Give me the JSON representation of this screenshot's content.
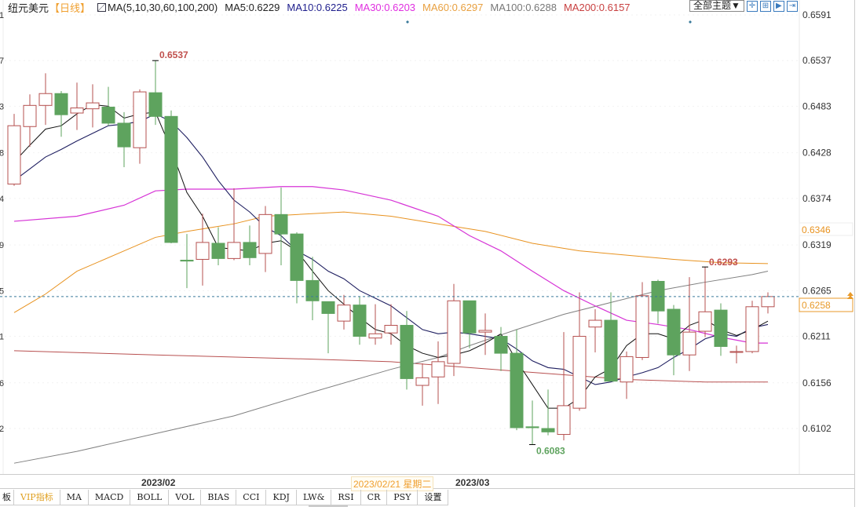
{
  "header": {
    "symbol": "纽元美元",
    "period": "【日线】",
    "ma_params": "MA(5,10,30,60,100,200)",
    "ma5": "MA5:0.6229",
    "ma10": "MA10:0.6225",
    "ma30": "MA30:0.6203",
    "ma60": "MA60:0.6297",
    "ma100": "MA100:0.6288",
    "ma200": "MA200:0.6157"
  },
  "toolbar": {
    "theme": "全部主题▼",
    "icons": [
      "crosshair-icon",
      "candle-icon",
      "step-icon",
      "export-icon"
    ]
  },
  "tabs": [
    "板",
    "VIP指标",
    "MA",
    "MACD",
    "BOLL",
    "VOL",
    "BIAS",
    "CCI",
    "KDJ",
    "LW&",
    "RSI",
    "CR",
    "PSY",
    "设置"
  ],
  "xaxis": {
    "month1": "2023/02",
    "month2": "2023/03",
    "crosshair_date": "2023/02/21 星期二"
  },
  "colors": {
    "up": "#b5504f",
    "down": "#5ea35e",
    "ma5": "#111111",
    "ma10": "#1e1e60",
    "ma30": "#d633d6",
    "ma60": "#e8921f",
    "ma100": "#808080",
    "ma200": "#b85050",
    "last": "#e89a2a"
  },
  "chart_data": {
    "type": "candlestick",
    "title": "纽元美元 日线",
    "ylim": [
      0.6058,
      0.6591
    ],
    "yticks": [
      "0.6591",
      "0.6537",
      "0.6483",
      "0.6428",
      "0.6374",
      "0.6319",
      "0.6265",
      "0.6211",
      "0.6156",
      "0.6102"
    ],
    "left_ticks": [
      "1",
      "7",
      "3",
      "8",
      "4",
      "9",
      "5",
      "1",
      "6",
      "2"
    ],
    "ma60_marker": "0.6346",
    "last_price": "0.6258",
    "high_label": "0.6537",
    "low_label": "0.6083",
    "recent_high_label": "0.6293",
    "ohlc": [
      [
        0.6391,
        0.6474,
        0.6389,
        0.646
      ],
      [
        0.6459,
        0.6497,
        0.6435,
        0.6484
      ],
      [
        0.6484,
        0.6522,
        0.6461,
        0.6498
      ],
      [
        0.6498,
        0.6501,
        0.6447,
        0.6473
      ],
      [
        0.6475,
        0.6511,
        0.6455,
        0.6481
      ],
      [
        0.648,
        0.6509,
        0.6458,
        0.6487
      ],
      [
        0.6482,
        0.6506,
        0.646,
        0.6463
      ],
      [
        0.6463,
        0.6476,
        0.6411,
        0.6435
      ],
      [
        0.6434,
        0.6503,
        0.6415,
        0.65
      ],
      [
        0.6499,
        0.6537,
        0.6461,
        0.6471
      ],
      [
        0.6471,
        0.6478,
        0.6321,
        0.6322
      ],
      [
        0.6301,
        0.6332,
        0.6268,
        0.63
      ],
      [
        0.6302,
        0.6356,
        0.6271,
        0.6322
      ],
      [
        0.6321,
        0.634,
        0.6295,
        0.6303
      ],
      [
        0.6303,
        0.6386,
        0.6301,
        0.6322
      ],
      [
        0.6322,
        0.6342,
        0.6295,
        0.6304
      ],
      [
        0.6309,
        0.6365,
        0.6287,
        0.6355
      ],
      [
        0.6355,
        0.6387,
        0.6295,
        0.6332
      ],
      [
        0.6332,
        0.6334,
        0.625,
        0.6277
      ],
      [
        0.6277,
        0.6305,
        0.623,
        0.6253
      ],
      [
        0.6252,
        0.6252,
        0.6191,
        0.6238
      ],
      [
        0.6229,
        0.626,
        0.6219,
        0.6248
      ],
      [
        0.6248,
        0.6258,
        0.6201,
        0.6211
      ],
      [
        0.6209,
        0.6249,
        0.6201,
        0.6214
      ],
      [
        0.6215,
        0.6249,
        0.6201,
        0.6224
      ],
      [
        0.6224,
        0.6241,
        0.6148,
        0.6161
      ],
      [
        0.6153,
        0.6179,
        0.6129,
        0.6162
      ],
      [
        0.6163,
        0.6205,
        0.6131,
        0.6181
      ],
      [
        0.6179,
        0.6273,
        0.6164,
        0.6253
      ],
      [
        0.6253,
        0.6253,
        0.6197,
        0.6215
      ],
      [
        0.6216,
        0.6238,
        0.6189,
        0.6218
      ],
      [
        0.6211,
        0.6222,
        0.617,
        0.6191
      ],
      [
        0.6191,
        0.6219,
        0.61,
        0.6103
      ],
      [
        0.6104,
        0.6135,
        0.6083,
        0.6103
      ],
      [
        0.6102,
        0.6148,
        0.6094,
        0.6098
      ],
      [
        0.6095,
        0.6216,
        0.6088,
        0.6129
      ],
      [
        0.6126,
        0.6263,
        0.6123,
        0.6211
      ],
      [
        0.6222,
        0.6243,
        0.6192,
        0.623
      ],
      [
        0.623,
        0.6263,
        0.6158,
        0.6158
      ],
      [
        0.6157,
        0.6193,
        0.6137,
        0.6187
      ],
      [
        0.6186,
        0.6275,
        0.6183,
        0.6259
      ],
      [
        0.6276,
        0.6278,
        0.6226,
        0.6241
      ],
      [
        0.6243,
        0.6248,
        0.6165,
        0.6189
      ],
      [
        0.6189,
        0.6281,
        0.617,
        0.6216
      ],
      [
        0.6217,
        0.6293,
        0.621,
        0.624
      ],
      [
        0.6242,
        0.625,
        0.6188,
        0.6199
      ],
      [
        0.6192,
        0.62,
        0.6179,
        0.6193
      ],
      [
        0.6193,
        0.6253,
        0.6191,
        0.6246
      ],
      [
        0.6246,
        0.6263,
        0.6238,
        0.6258
      ]
    ],
    "ma5": [
      0.6417,
      0.6437,
      0.6456,
      0.646,
      0.6474,
      0.6485,
      0.6483,
      0.6469,
      0.6474,
      0.6476,
      0.6432,
      0.6381,
      0.6353,
      0.6316,
      0.6314,
      0.6312,
      0.6321,
      0.6324,
      0.6312,
      0.6288,
      0.6265,
      0.6249,
      0.6233,
      0.6219,
      0.6214,
      0.62,
      0.6191,
      0.6186,
      0.6189,
      0.6194,
      0.6203,
      0.6214,
      0.6182,
      0.6154,
      0.6126,
      0.6126,
      0.6138,
      0.6163,
      0.6173,
      0.62,
      0.6214,
      0.6214,
      0.6208,
      0.6224,
      0.6231,
      0.6219,
      0.6212,
      0.6219,
      0.6229
    ],
    "ma10": [
      0.6395,
      0.6409,
      0.6423,
      0.6432,
      0.6442,
      0.6451,
      0.646,
      0.6462,
      0.6465,
      0.6474,
      0.6465,
      0.6446,
      0.6423,
      0.6395,
      0.6372,
      0.6358,
      0.634,
      0.633,
      0.6312,
      0.6302,
      0.6288,
      0.6279,
      0.6265,
      0.6256,
      0.6247,
      0.6233,
      0.6219,
      0.6214,
      0.6216,
      0.6214,
      0.6211,
      0.6208,
      0.6196,
      0.6182,
      0.6174,
      0.6172,
      0.6163,
      0.6154,
      0.6157,
      0.6163,
      0.6168,
      0.6174,
      0.6186,
      0.6196,
      0.6208,
      0.6214,
      0.6211,
      0.6221,
      0.6225
    ],
    "ma30": [
      [
        1,
        0.6347
      ],
      [
        5,
        0.6353
      ],
      [
        8,
        0.6366
      ],
      [
        10,
        0.6383
      ],
      [
        12,
        0.6385
      ],
      [
        15,
        0.6385
      ],
      [
        18,
        0.6388
      ],
      [
        20,
        0.6388
      ],
      [
        22,
        0.6384
      ],
      [
        25,
        0.6372
      ],
      [
        28,
        0.6353
      ],
      [
        30,
        0.633
      ],
      [
        32,
        0.6312
      ],
      [
        34,
        0.6288
      ],
      [
        36,
        0.6265
      ],
      [
        38,
        0.6247
      ],
      [
        40,
        0.623
      ],
      [
        42,
        0.6225
      ],
      [
        44,
        0.6219
      ],
      [
        46,
        0.621
      ],
      [
        48,
        0.6203
      ],
      [
        49,
        0.6203
      ]
    ],
    "ma60": [
      [
        1,
        0.6239
      ],
      [
        3,
        0.6261
      ],
      [
        5,
        0.6288
      ],
      [
        8,
        0.6312
      ],
      [
        10,
        0.6328
      ],
      [
        12,
        0.6335
      ],
      [
        15,
        0.6344
      ],
      [
        17,
        0.6353
      ],
      [
        19,
        0.6355
      ],
      [
        22,
        0.6358
      ],
      [
        25,
        0.6353
      ],
      [
        28,
        0.6344
      ],
      [
        31,
        0.6335
      ],
      [
        34,
        0.6321
      ],
      [
        37,
        0.6312
      ],
      [
        40,
        0.6307
      ],
      [
        43,
        0.6302
      ],
      [
        46,
        0.6298
      ],
      [
        49,
        0.6297
      ]
    ],
    "ma100": [
      [
        1,
        0.6061
      ],
      [
        5,
        0.6075
      ],
      [
        10,
        0.6096
      ],
      [
        15,
        0.6117
      ],
      [
        20,
        0.6145
      ],
      [
        25,
        0.6172
      ],
      [
        28,
        0.6186
      ],
      [
        30,
        0.62
      ],
      [
        33,
        0.6219
      ],
      [
        36,
        0.6237
      ],
      [
        39,
        0.6251
      ],
      [
        42,
        0.6265
      ],
      [
        45,
        0.6275
      ],
      [
        48,
        0.6284
      ],
      [
        49,
        0.6288
      ]
    ],
    "ma200": [
      [
        1,
        0.6194
      ],
      [
        10,
        0.6189
      ],
      [
        20,
        0.6184
      ],
      [
        25,
        0.6181
      ],
      [
        30,
        0.6174
      ],
      [
        35,
        0.6167
      ],
      [
        40,
        0.616
      ],
      [
        45,
        0.6157
      ],
      [
        49,
        0.6157
      ]
    ]
  }
}
